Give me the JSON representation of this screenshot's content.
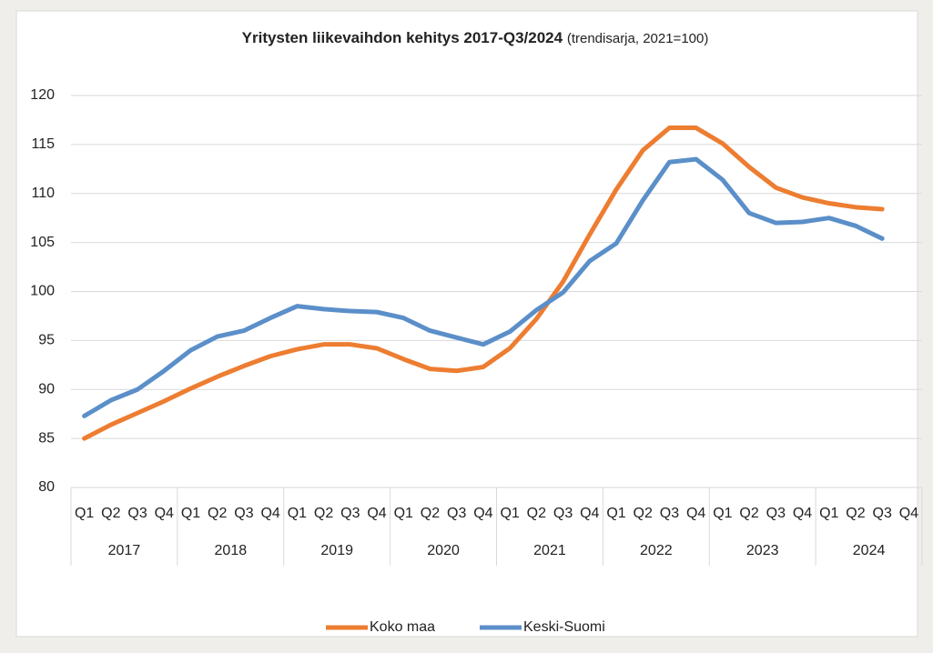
{
  "chart_data": {
    "type": "line",
    "title": "Yritysten liikevaihdon kehitys 2017-Q3/2024",
    "subtitle": "(trendisarja, 2021=100)",
    "categories": [
      "Q1",
      "Q2",
      "Q3",
      "Q4",
      "Q1",
      "Q2",
      "Q3",
      "Q4",
      "Q1",
      "Q2",
      "Q3",
      "Q4",
      "Q1",
      "Q2",
      "Q3",
      "Q4",
      "Q1",
      "Q2",
      "Q3",
      "Q4",
      "Q1",
      "Q2",
      "Q3",
      "Q4",
      "Q1",
      "Q2",
      "Q3",
      "Q4",
      "Q1",
      "Q2",
      "Q3",
      "Q4"
    ],
    "category_groups": [
      "2017",
      "2018",
      "2019",
      "2020",
      "2021",
      "2022",
      "2023",
      "2024"
    ],
    "series": [
      {
        "name": "Koko maa",
        "color": "#ed7d31",
        "values": [
          85.0,
          86.4,
          87.6,
          88.8,
          90.1,
          91.3,
          92.4,
          93.4,
          94.1,
          94.6,
          94.6,
          94.2,
          93.1,
          92.1,
          91.9,
          92.3,
          94.2,
          97.2,
          101.0,
          105.8,
          110.4,
          114.4,
          116.7,
          116.7,
          115.1,
          112.7,
          110.6,
          109.6,
          109.0,
          108.6,
          108.4,
          null
        ]
      },
      {
        "name": "Keski-Suomi",
        "color": "#5b8fc9",
        "values": [
          87.3,
          88.9,
          90.0,
          91.9,
          94.0,
          95.4,
          96.0,
          97.3,
          98.5,
          98.2,
          98.0,
          97.9,
          97.3,
          96.0,
          95.3,
          94.6,
          95.9,
          98.1,
          99.9,
          103.1,
          104.9,
          109.3,
          113.2,
          113.5,
          111.4,
          108.0,
          107.0,
          107.1,
          107.5,
          106.7,
          105.4,
          null
        ]
      }
    ],
    "ylim": [
      80,
      120
    ],
    "yticks": [
      80,
      85,
      90,
      95,
      100,
      105,
      110,
      115,
      120
    ],
    "grid": true,
    "legend": "bottom"
  }
}
